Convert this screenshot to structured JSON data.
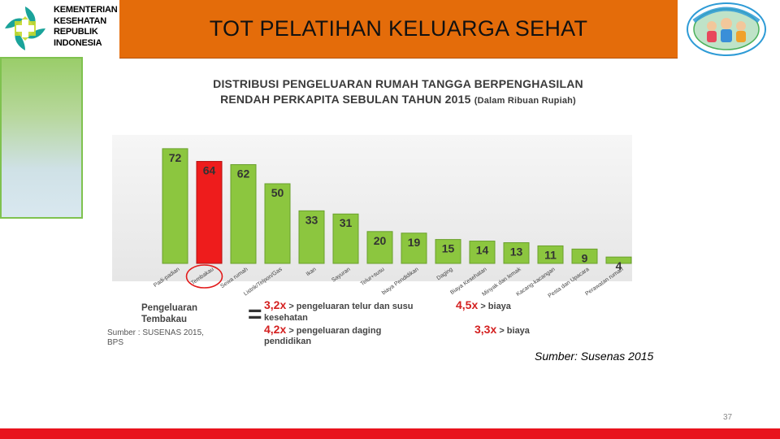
{
  "header": {
    "logo_lines": [
      "KEMENTERIAN",
      "KESEHATAN",
      "REPUBLIK",
      "INDONESIA"
    ],
    "title": "TOT PELATIHAN KELUARGA SEHAT"
  },
  "chart_data": {
    "type": "bar",
    "title": "DISTRIBUSI PENGELUARAN RUMAH TANGGA BERPENGHASILAN",
    "subtitle_main": "RENDAH PERKAPITA SEBULAN TAHUN 2015",
    "subtitle_unit": "(Dalam Ribuan Rupiah)",
    "categories": [
      "Padi-padian",
      "Tembakau",
      "Sewa rumah",
      "Listrik/Telpon/Gas",
      "Ikan",
      "Sayuran",
      "Telur+susu",
      "biaya Pendidikan",
      "Daging",
      "Biaya Kesehatan",
      "Minyak dan lemak",
      "Kacang-kacangan",
      "Pesta dan Upacara",
      "Perawatan rumah"
    ],
    "values": [
      72,
      64,
      62,
      50,
      33,
      31,
      20,
      19,
      15,
      14,
      13,
      11,
      9,
      4
    ],
    "colors": [
      "#8cc63f",
      "#ee1c1c",
      "#8cc63f",
      "#8cc63f",
      "#8cc63f",
      "#8cc63f",
      "#8cc63f",
      "#8cc63f",
      "#8cc63f",
      "#8cc63f",
      "#8cc63f",
      "#8cc63f",
      "#8cc63f",
      "#8cc63f"
    ],
    "highlight_category": "Tembakau",
    "xlabel": "",
    "ylabel": "",
    "ylim": [
      0,
      80
    ],
    "grid": false
  },
  "notes": {
    "label_line1": "Pengeluaran",
    "label_line2": "Tembakau",
    "equals": "=",
    "item1_mult": "3,2x",
    "item1_text": "> pengeluaran telur dan susu",
    "item2_mult": "4,5x",
    "item2_text": "> biaya",
    "item2_cont": "kesehatan",
    "item3_mult": "4,2x",
    "item3_text": "> pengeluaran daging",
    "item4_mult": "3,3x",
    "item4_text": "> biaya",
    "item4_cont": "pendidikan",
    "source_line1": "Sumber : SUSENAS 2015,",
    "source_line2": "BPS"
  },
  "footer": {
    "source_caption": "Sumber: Susenas 2015",
    "page_number": "37"
  },
  "colors": {
    "title_bar": "#e46c0a",
    "bottom_bar": "#e8131d",
    "bar_green": "#8cc63f",
    "bar_highlight": "#ee1c1c"
  }
}
